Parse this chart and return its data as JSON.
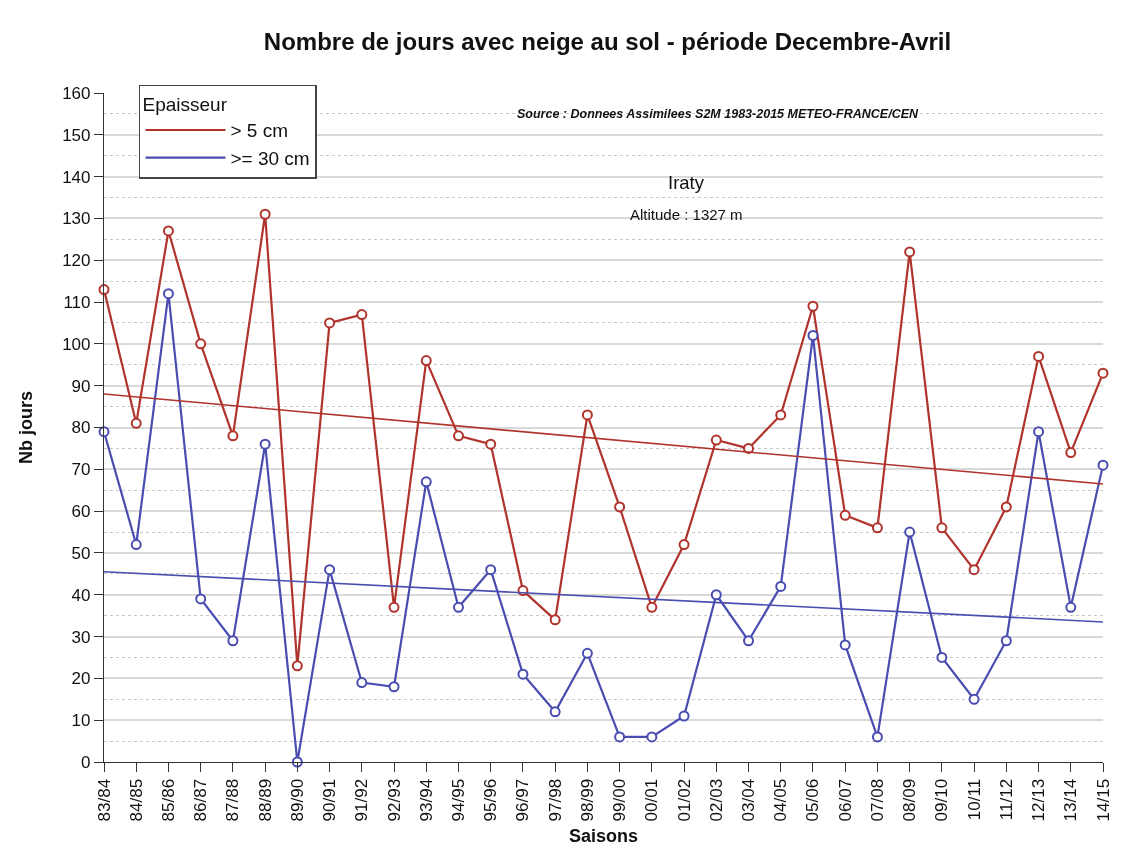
{
  "chart_data": {
    "type": "line",
    "title": "Nombre de jours avec neige au sol - période Decembre-Avril",
    "xlabel": "Saisons",
    "ylabel": "Nb jours",
    "legend_title": "Epaisseur",
    "annotations": [
      "Source : Donnees Assimilees S2M 1983-2015 METEO-FRANCE/CEN",
      "Iraty",
      "Altitude : 1327 m"
    ],
    "categories": [
      "83/84",
      "84/85",
      "85/86",
      "86/87",
      "87/88",
      "88/89",
      "89/90",
      "90/91",
      "91/92",
      "92/93",
      "93/94",
      "94/95",
      "95/96",
      "96/97",
      "97/98",
      "98/99",
      "99/00",
      "00/01",
      "01/02",
      "02/03",
      "03/04",
      "04/05",
      "05/06",
      "06/07",
      "07/08",
      "08/09",
      "09/10",
      "10/11",
      "11/12",
      "12/13",
      "13/14",
      "14/15"
    ],
    "series": [
      {
        "name": "> 5 cm",
        "color": "#b0332c",
        "values": [
          113,
          81,
          127,
          100,
          78,
          131,
          23,
          105,
          107,
          37,
          96,
          78,
          76,
          41,
          34,
          83,
          61,
          37,
          52,
          77,
          75,
          83,
          109,
          59,
          56,
          122,
          56,
          46,
          61,
          97,
          74,
          93
        ]
      },
      {
        "name": ">= 30 cm",
        "color": "#4a4db0",
        "values": [
          79,
          52,
          112,
          39,
          29,
          76,
          0,
          46,
          19,
          18,
          67,
          37,
          46,
          21,
          12,
          26,
          6,
          6,
          11,
          40,
          29,
          42,
          102,
          28,
          6,
          55,
          25,
          15,
          29,
          79,
          37,
          71
        ]
      },
      {
        "type": "line",
        "color": "#b0332c",
        "marker": "none",
        "x": [
          "83/84",
          "14/15"
        ],
        "values": [
          88,
          66.5
        ]
      },
      {
        "type": "line",
        "color": "#4a4db0",
        "marker": "none",
        "x": [
          "83/84",
          "14/15"
        ],
        "values": [
          45.5,
          33.5
        ]
      }
    ],
    "ylim": [
      0,
      160
    ],
    "yticks": [
      0,
      10,
      20,
      30,
      40,
      50,
      60,
      70,
      80,
      90,
      100,
      110,
      120,
      130,
      140,
      150,
      160
    ],
    "grid": "y",
    "legend": "top left",
    "marker": "circle",
    "line_style": "solid"
  }
}
